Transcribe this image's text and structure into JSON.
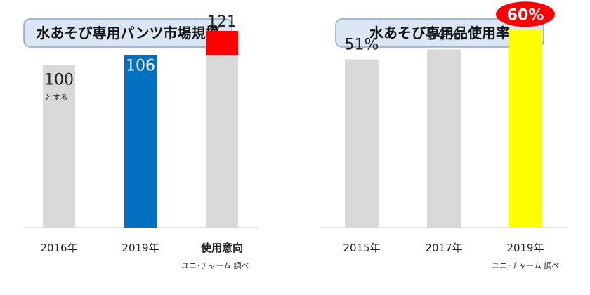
{
  "chart_data": [
    {
      "type": "bar",
      "title": "水あそび専用パンツ市場規模",
      "categories": [
        "2016年",
        "2019年",
        "使用意向"
      ],
      "values": [
        100,
        106,
        121
      ],
      "value_labels": [
        "100",
        "106",
        "121"
      ],
      "base_note": "とする",
      "stacked_base": 106,
      "ylim": [
        0,
        140
      ],
      "source": "ユニ･チャーム 調べ",
      "colors": {
        "base": "#d9d9d9",
        "highlight": "#0070c0",
        "increase": "#ff0000"
      }
    },
    {
      "type": "bar",
      "title": "水あそび専用品使用率",
      "categories": [
        "2015年",
        "2017年",
        "2019年"
      ],
      "values": [
        51,
        54,
        60
      ],
      "value_labels": [
        "51%",
        "54%",
        "60%"
      ],
      "ylim": [
        0,
        69
      ],
      "source": "ユニ･チャーム 調べ",
      "colors": {
        "base": "#d9d9d9",
        "highlight": "#ffff00",
        "badge": "#ff0000",
        "badge_text": "#ffffff"
      }
    }
  ]
}
